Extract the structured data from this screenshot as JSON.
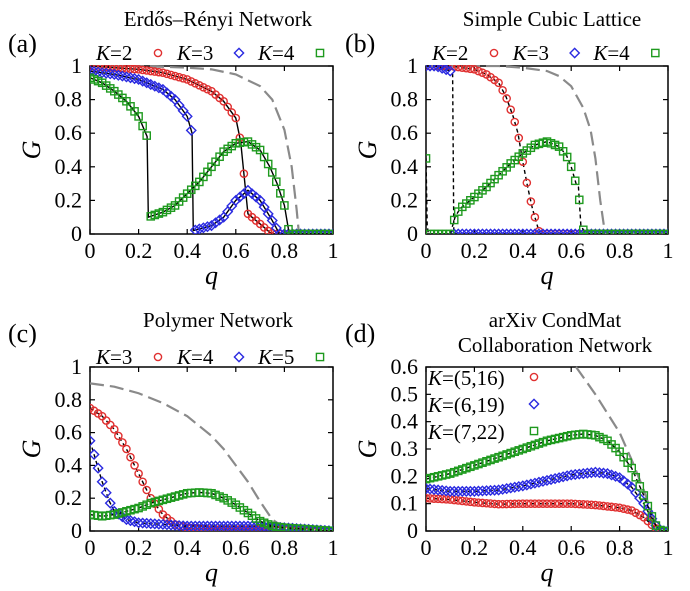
{
  "chart_data": [
    {
      "panel": "(a)",
      "type": "line",
      "title": "Erdős–Rényi Network",
      "xlabel": "q",
      "ylabel": "G",
      "xlim": [
        0,
        1
      ],
      "ylim": [
        0,
        1
      ],
      "xticks": [
        "0",
        "0.2",
        "0.4",
        "0.6",
        "0.8",
        "1"
      ],
      "yticks": [
        "0",
        "0.2",
        "0.4",
        "0.6",
        "0.8",
        "1"
      ],
      "legend": {
        "placement": "top",
        "layout": "row"
      },
      "gray_dashed": {
        "x": [
          0,
          0.2,
          0.4,
          0.5,
          0.6,
          0.7,
          0.75,
          0.8,
          0.83,
          0.85,
          0.86,
          1
        ],
        "y": [
          1,
          1,
          0.99,
          0.98,
          0.95,
          0.88,
          0.8,
          0.62,
          0.4,
          0.15,
          0,
          0
        ]
      },
      "series": [
        {
          "name": "K=2",
          "k": "2",
          "marker": "circle",
          "color": "#e03030",
          "x": [
            0,
            0.1,
            0.2,
            0.3,
            0.4,
            0.5,
            0.55,
            0.6,
            0.62,
            0.65,
            0.7,
            0.74,
            0.76,
            0.8,
            0.9,
            1
          ],
          "y": [
            1,
            0.99,
            0.98,
            0.96,
            0.92,
            0.85,
            0.79,
            0.69,
            0.55,
            0.12,
            0.06,
            0.01,
            0,
            0,
            0,
            0
          ]
        },
        {
          "name": "K=3",
          "k": "3",
          "marker": "diamond",
          "color": "#2a2ae0",
          "x": [
            0,
            0.1,
            0.2,
            0.3,
            0.35,
            0.4,
            0.42,
            0.425,
            0.5,
            0.55,
            0.6,
            0.65,
            0.7,
            0.75,
            0.78,
            0.8,
            0.9,
            1
          ],
          "y": [
            0.97,
            0.95,
            0.92,
            0.86,
            0.8,
            0.7,
            0.6,
            0.02,
            0.05,
            0.1,
            0.2,
            0.26,
            0.2,
            0.08,
            0,
            0,
            0,
            0
          ]
        },
        {
          "name": "K=4",
          "k": "4",
          "marker": "square",
          "color": "#1e9a1e",
          "x": [
            0,
            0.05,
            0.1,
            0.15,
            0.2,
            0.235,
            0.24,
            0.3,
            0.35,
            0.4,
            0.45,
            0.5,
            0.55,
            0.6,
            0.65,
            0.7,
            0.74,
            0.77,
            0.8,
            0.82,
            0.9,
            1
          ],
          "y": [
            0.93,
            0.9,
            0.85,
            0.79,
            0.7,
            0.58,
            0.1,
            0.13,
            0.17,
            0.24,
            0.31,
            0.4,
            0.49,
            0.54,
            0.55,
            0.5,
            0.4,
            0.3,
            0.17,
            0,
            0,
            0
          ]
        }
      ]
    },
    {
      "panel": "(b)",
      "type": "line",
      "title": "Simple Cubic Lattice",
      "xlabel": "q",
      "ylabel": "G",
      "xlim": [
        0,
        1
      ],
      "ylim": [
        0,
        1
      ],
      "xticks": [
        "0",
        "0.2",
        "0.4",
        "0.6",
        "0.8",
        "1"
      ],
      "yticks": [
        "0",
        "0.2",
        "0.4",
        "0.6",
        "0.8",
        "1"
      ],
      "legend": {
        "placement": "top",
        "layout": "row"
      },
      "gray_dashed": {
        "x": [
          0,
          0.2,
          0.3,
          0.4,
          0.5,
          0.55,
          0.6,
          0.65,
          0.68,
          0.7,
          0.72,
          0.74,
          1
        ],
        "y": [
          1,
          1,
          1,
          0.99,
          0.97,
          0.94,
          0.88,
          0.75,
          0.62,
          0.45,
          0.2,
          0,
          0
        ]
      },
      "series": [
        {
          "name": "K=2",
          "k": "2",
          "marker": "circle",
          "color": "#e03030",
          "x": [
            0,
            0.1,
            0.2,
            0.25,
            0.3,
            0.33,
            0.36,
            0.38,
            0.4,
            0.42,
            0.44,
            0.47,
            0.5,
            0.6,
            0.8,
            1
          ],
          "y": [
            1,
            1,
            0.98,
            0.95,
            0.9,
            0.82,
            0.7,
            0.6,
            0.43,
            0.28,
            0.15,
            0,
            0,
            0,
            0,
            0
          ]
        },
        {
          "name": "K=3",
          "k": "3",
          "marker": "diamond",
          "color": "#2a2ae0",
          "x": [
            0,
            0.02,
            0.04,
            0.06,
            0.08,
            0.1,
            0.11,
            0.115,
            0.2,
            0.4,
            0.6,
            0.8,
            1
          ],
          "y": [
            1,
            1,
            1,
            0.99,
            0.98,
            0.97,
            0.95,
            0,
            0,
            0,
            0,
            0,
            0
          ]
        },
        {
          "name": "K=4",
          "k": "4",
          "marker": "square",
          "color": "#1e9a1e",
          "x": [
            0,
            0.005,
            0.01,
            0.05,
            0.1,
            0.12,
            0.14,
            0.2,
            0.25,
            0.3,
            0.35,
            0.4,
            0.45,
            0.5,
            0.55,
            0.58,
            0.6,
            0.62,
            0.63,
            0.64,
            0.66,
            0.8,
            1
          ],
          "y": [
            0.45,
            0.05,
            0,
            0,
            0,
            0.1,
            0.15,
            0.22,
            0.28,
            0.35,
            0.42,
            0.48,
            0.53,
            0.55,
            0.52,
            0.47,
            0.4,
            0.3,
            0.28,
            0.05,
            0,
            0,
            0
          ]
        }
      ]
    },
    {
      "panel": "(c)",
      "type": "line",
      "title": "Polymer Network",
      "xlabel": "q",
      "ylabel": "G",
      "xlim": [
        0,
        1
      ],
      "ylim": [
        0,
        1
      ],
      "xticks": [
        "0",
        "0.2",
        "0.4",
        "0.6",
        "0.8",
        "1"
      ],
      "yticks": [
        "0",
        "0.2",
        "0.4",
        "0.6",
        "0.8",
        "1"
      ],
      "legend": {
        "placement": "top",
        "layout": "row"
      },
      "gray_dashed": {
        "x": [
          0,
          0.1,
          0.2,
          0.3,
          0.4,
          0.5,
          0.55,
          0.6,
          0.65,
          0.7,
          0.75,
          0.8,
          0.9,
          1
        ],
        "y": [
          0.9,
          0.88,
          0.84,
          0.78,
          0.7,
          0.58,
          0.5,
          0.4,
          0.3,
          0.18,
          0.07,
          0.02,
          0,
          0
        ]
      },
      "series": [
        {
          "name": "K=3",
          "k": "3",
          "marker": "circle",
          "color": "#e03030",
          "x": [
            0,
            0.05,
            0.1,
            0.15,
            0.2,
            0.25,
            0.3,
            0.35,
            0.4,
            0.5,
            0.6,
            0.7,
            0.8,
            0.9,
            1
          ],
          "y": [
            0.75,
            0.7,
            0.62,
            0.5,
            0.35,
            0.2,
            0.1,
            0.04,
            0.02,
            0.01,
            0.01,
            0.01,
            0.01,
            0,
            0
          ]
        },
        {
          "name": "K=4",
          "k": "4",
          "marker": "diamond",
          "color": "#2a2ae0",
          "x": [
            0,
            0.02,
            0.05,
            0.08,
            0.1,
            0.15,
            0.2,
            0.3,
            0.4,
            0.5,
            0.6,
            0.7,
            0.8,
            0.9,
            1
          ],
          "y": [
            0.55,
            0.45,
            0.3,
            0.18,
            0.12,
            0.07,
            0.05,
            0.04,
            0.03,
            0.03,
            0.03,
            0.03,
            0.02,
            0.01,
            0
          ]
        },
        {
          "name": "K=5",
          "k": "5",
          "marker": "square",
          "color": "#1e9a1e",
          "x": [
            0,
            0.05,
            0.1,
            0.15,
            0.2,
            0.25,
            0.3,
            0.35,
            0.4,
            0.45,
            0.5,
            0.55,
            0.6,
            0.65,
            0.7,
            0.75,
            0.8,
            0.9,
            1
          ],
          "y": [
            0.1,
            0.09,
            0.1,
            0.12,
            0.14,
            0.17,
            0.19,
            0.21,
            0.23,
            0.235,
            0.23,
            0.2,
            0.16,
            0.11,
            0.06,
            0.03,
            0.02,
            0.01,
            0
          ]
        }
      ]
    },
    {
      "panel": "(d)",
      "type": "line",
      "title_lines": [
        "arXiv CondMat",
        "Collaboration Network"
      ],
      "xlabel": "q",
      "ylabel": "G",
      "xlim": [
        0,
        1
      ],
      "ylim": [
        0,
        0.6
      ],
      "xticks": [
        "0",
        "0.2",
        "0.4",
        "0.6",
        "0.8",
        "1"
      ],
      "yticks": [
        "0",
        "0.1",
        "0.2",
        "0.3",
        "0.4",
        "0.5",
        "0.6"
      ],
      "legend": {
        "placement": "upper-left",
        "layout": "column"
      },
      "gray_dashed": {
        "x": [
          0.62,
          0.7,
          0.8,
          0.85,
          0.9,
          0.93,
          0.95,
          0.96,
          1
        ],
        "y": [
          0.6,
          0.5,
          0.36,
          0.26,
          0.15,
          0.07,
          0.02,
          0,
          0
        ]
      },
      "series": [
        {
          "name": "K=(5,16)",
          "k": "(5,16)",
          "marker": "circle",
          "color": "#e03030",
          "x": [
            0,
            0.1,
            0.2,
            0.3,
            0.4,
            0.5,
            0.6,
            0.7,
            0.8,
            0.85,
            0.9,
            0.93,
            0.95,
            0.97,
            1
          ],
          "y": [
            0.12,
            0.115,
            0.105,
            0.098,
            0.1,
            0.1,
            0.1,
            0.095,
            0.085,
            0.075,
            0.05,
            0.025,
            0.01,
            0,
            0
          ]
        },
        {
          "name": "K=(6,19)",
          "k": "(6,19)",
          "marker": "diamond",
          "color": "#2a2ae0",
          "x": [
            0,
            0.1,
            0.2,
            0.3,
            0.4,
            0.5,
            0.6,
            0.65,
            0.7,
            0.75,
            0.8,
            0.85,
            0.9,
            0.93,
            0.95,
            0.97,
            1
          ],
          "y": [
            0.155,
            0.145,
            0.145,
            0.15,
            0.165,
            0.185,
            0.205,
            0.21,
            0.215,
            0.21,
            0.195,
            0.16,
            0.1,
            0.05,
            0.02,
            0,
            0
          ]
        },
        {
          "name": "K=(7,22)",
          "k": "(7,22)",
          "marker": "square",
          "color": "#1e9a1e",
          "x": [
            0,
            0.1,
            0.2,
            0.3,
            0.4,
            0.5,
            0.6,
            0.65,
            0.7,
            0.75,
            0.8,
            0.85,
            0.9,
            0.93,
            0.95,
            0.97,
            1
          ],
          "y": [
            0.19,
            0.21,
            0.24,
            0.27,
            0.3,
            0.33,
            0.35,
            0.355,
            0.35,
            0.33,
            0.29,
            0.23,
            0.13,
            0.06,
            0.02,
            0,
            0
          ]
        }
      ]
    }
  ]
}
